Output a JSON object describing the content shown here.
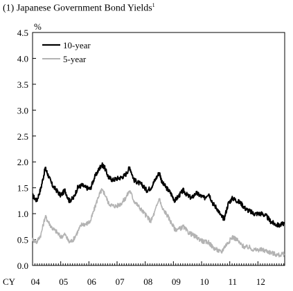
{
  "title": "(1) Japanese Government Bond Yields",
  "title_note": "1",
  "chart_data": {
    "type": "line",
    "title": "(1) Japanese Government Bond Yields",
    "ylabel": "%",
    "xlabel": "CY",
    "ylim": [
      0,
      4.5
    ],
    "yticks": [
      0.0,
      0.5,
      1.0,
      1.5,
      2.0,
      2.5,
      3.0,
      3.5,
      4.0,
      4.5
    ],
    "ytick_labels": [
      "0.0",
      "0.5",
      "1.0",
      "1.5",
      "2.0",
      "2.5",
      "3.0",
      "3.5",
      "4.0",
      "4.5"
    ],
    "xlim": [
      2004.0,
      2012.95
    ],
    "xtick_labels": [
      "04",
      "05",
      "06",
      "07",
      "08",
      "09",
      "10",
      "11",
      "12"
    ],
    "grid": false,
    "legend_position": "top-left",
    "series": [
      {
        "name": "10-year",
        "color": "#000000",
        "x": [
          2004.0,
          2004.15,
          2004.3,
          2004.45,
          2004.55,
          2004.7,
          2004.85,
          2005.0,
          2005.15,
          2005.3,
          2005.45,
          2005.6,
          2005.75,
          2005.9,
          2006.05,
          2006.2,
          2006.35,
          2006.45,
          2006.55,
          2006.7,
          2006.85,
          2007.0,
          2007.15,
          2007.3,
          2007.45,
          2007.6,
          2007.75,
          2007.9,
          2008.05,
          2008.2,
          2008.35,
          2008.5,
          2008.6,
          2008.75,
          2008.9,
          2009.05,
          2009.2,
          2009.35,
          2009.5,
          2009.65,
          2009.8,
          2009.95,
          2010.1,
          2010.25,
          2010.4,
          2010.55,
          2010.7,
          2010.8,
          2010.95,
          2011.1,
          2011.25,
          2011.4,
          2011.55,
          2011.7,
          2011.85,
          2012.0,
          2012.15,
          2012.3,
          2012.45,
          2012.6,
          2012.75,
          2012.95
        ],
        "values": [
          1.35,
          1.25,
          1.5,
          1.88,
          1.75,
          1.55,
          1.45,
          1.35,
          1.45,
          1.25,
          1.3,
          1.5,
          1.55,
          1.5,
          1.48,
          1.7,
          1.85,
          1.95,
          1.9,
          1.7,
          1.65,
          1.68,
          1.7,
          1.75,
          1.9,
          1.65,
          1.6,
          1.55,
          1.45,
          1.5,
          1.65,
          1.8,
          1.6,
          1.5,
          1.4,
          1.25,
          1.35,
          1.45,
          1.35,
          1.3,
          1.4,
          1.35,
          1.3,
          1.4,
          1.2,
          1.1,
          0.95,
          0.9,
          1.2,
          1.3,
          1.25,
          1.2,
          1.1,
          1.05,
          1.0,
          1.0,
          1.0,
          0.95,
          0.85,
          0.8,
          0.77,
          0.82
        ]
      },
      {
        "name": "5-year",
        "color": "#b3b3b3",
        "x": [
          2004.0,
          2004.15,
          2004.3,
          2004.45,
          2004.55,
          2004.7,
          2004.85,
          2005.0,
          2005.15,
          2005.3,
          2005.45,
          2005.6,
          2005.75,
          2005.9,
          2006.05,
          2006.2,
          2006.35,
          2006.45,
          2006.55,
          2006.7,
          2006.85,
          2007.0,
          2007.15,
          2007.3,
          2007.45,
          2007.6,
          2007.75,
          2007.9,
          2008.05,
          2008.2,
          2008.35,
          2008.5,
          2008.6,
          2008.75,
          2008.9,
          2009.05,
          2009.2,
          2009.35,
          2009.5,
          2009.65,
          2009.8,
          2009.95,
          2010.1,
          2010.25,
          2010.4,
          2010.55,
          2010.7,
          2010.8,
          2010.95,
          2011.1,
          2011.25,
          2011.4,
          2011.55,
          2011.7,
          2011.85,
          2012.0,
          2012.15,
          2012.3,
          2012.45,
          2012.6,
          2012.75,
          2012.95
        ],
        "values": [
          0.5,
          0.45,
          0.6,
          0.95,
          0.85,
          0.72,
          0.65,
          0.55,
          0.6,
          0.45,
          0.5,
          0.65,
          0.8,
          0.8,
          0.85,
          1.1,
          1.35,
          1.45,
          1.4,
          1.2,
          1.15,
          1.15,
          1.2,
          1.3,
          1.45,
          1.25,
          1.15,
          1.05,
          0.95,
          0.85,
          1.05,
          1.3,
          1.1,
          1.0,
          0.85,
          0.7,
          0.7,
          0.75,
          0.65,
          0.6,
          0.55,
          0.5,
          0.45,
          0.45,
          0.35,
          0.3,
          0.25,
          0.35,
          0.45,
          0.55,
          0.5,
          0.4,
          0.35,
          0.35,
          0.3,
          0.3,
          0.3,
          0.28,
          0.25,
          0.22,
          0.2,
          0.22
        ]
      }
    ]
  }
}
